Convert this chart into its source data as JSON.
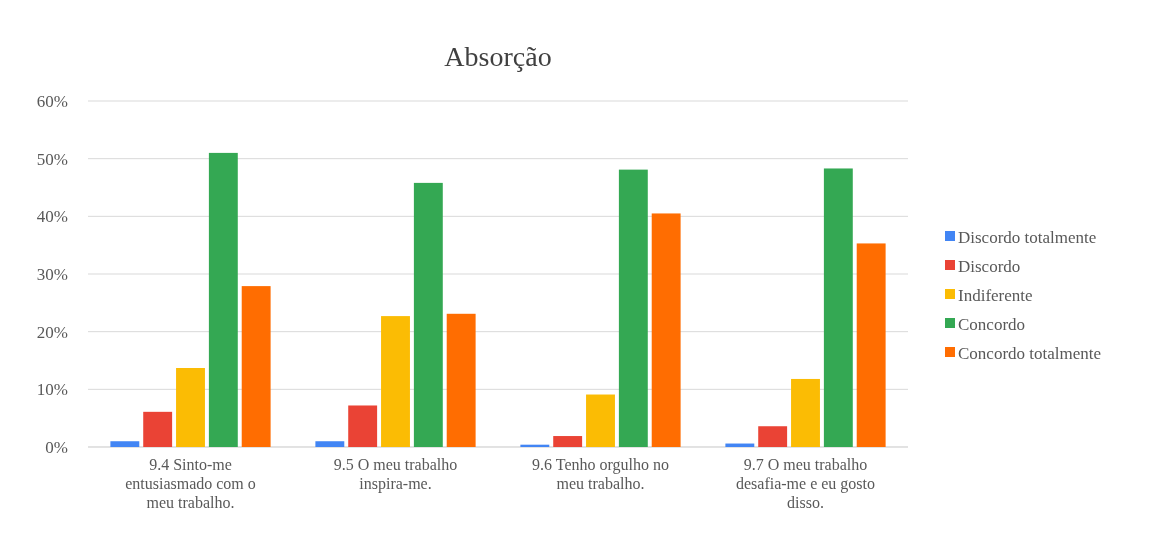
{
  "chart_data": {
    "type": "bar",
    "title": "Absorção",
    "categories": [
      "9.4 Sinto-me entusiasmado com o meu trabalho.",
      "9.5 O meu trabalho inspira-me.",
      "9.6 Tenho orgulho no meu trabalho.",
      "9.7 O meu trabalho desafia-me e eu gosto disso."
    ],
    "series": [
      {
        "name": "Discordo totalmente",
        "color": "#4285f4",
        "values": [
          1.0,
          1.0,
          0.4,
          0.6
        ]
      },
      {
        "name": "Discordo",
        "color": "#ea4335",
        "values": [
          6.1,
          7.2,
          1.9,
          3.6
        ]
      },
      {
        "name": "Indiferente",
        "color": "#fbbc04",
        "values": [
          13.7,
          22.7,
          9.1,
          11.8
        ]
      },
      {
        "name": "Concordo",
        "color": "#34a853",
        "values": [
          51.0,
          45.8,
          48.1,
          48.3
        ]
      },
      {
        "name": "Concordo totalmente",
        "color": "#ff6d01",
        "values": [
          27.9,
          23.1,
          40.5,
          35.3
        ]
      }
    ],
    "ylim": [
      0,
      60
    ],
    "yticks": [
      {
        "value": 0,
        "label": "0%"
      },
      {
        "value": 10,
        "label": "10%"
      },
      {
        "value": 20,
        "label": "20%"
      },
      {
        "value": 30,
        "label": "30%"
      },
      {
        "value": 40,
        "label": "40%"
      },
      {
        "value": 50,
        "label": "50%"
      },
      {
        "value": 60,
        "label": "60%"
      }
    ],
    "grid": "y",
    "legend": "right"
  }
}
